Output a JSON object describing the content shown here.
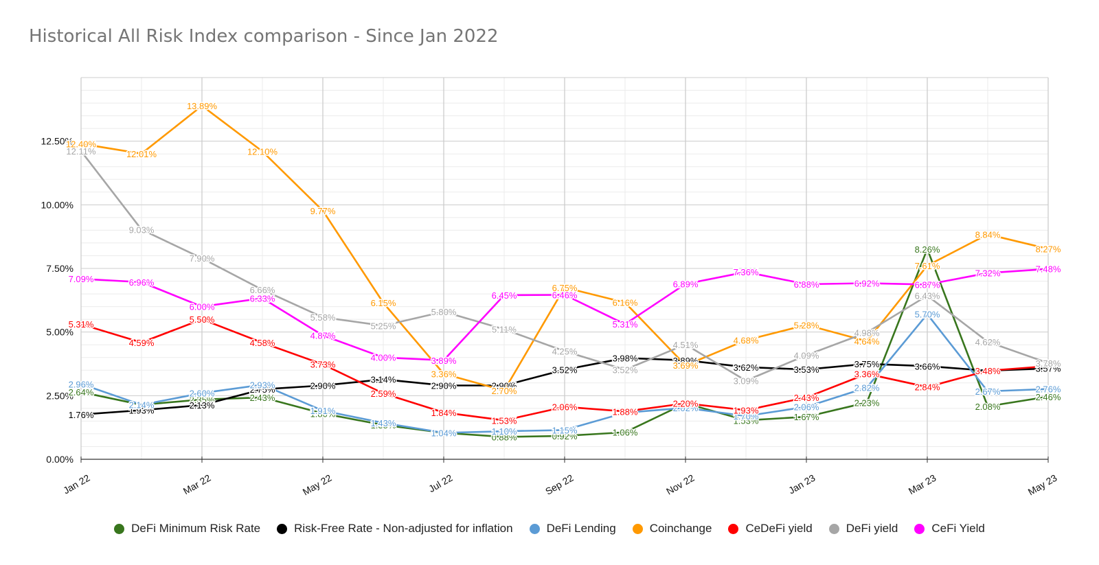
{
  "chart_data": {
    "type": "line",
    "title": "Historical All Risk Index comparison - Since Jan 2022",
    "ylim": [
      0,
      15
    ],
    "yticks": [
      {
        "value": 0,
        "label": "0.00%"
      },
      {
        "value": 2.5,
        "label": "2.50%"
      },
      {
        "value": 5,
        "label": "5.00%"
      },
      {
        "value": 7.5,
        "label": "7.50%"
      },
      {
        "value": 10,
        "label": "10.00%"
      },
      {
        "value": 12.5,
        "label": "12.50%"
      }
    ],
    "x_index_max": 16,
    "xticks": [
      {
        "index": 0,
        "label": "Jan 22"
      },
      {
        "index": 2,
        "label": "Mar 22"
      },
      {
        "index": 4,
        "label": "May 22"
      },
      {
        "index": 6,
        "label": "Jul 22"
      },
      {
        "index": 8,
        "label": "Sep 22"
      },
      {
        "index": 10,
        "label": "Nov 22"
      },
      {
        "index": 12,
        "label": "Jan 23"
      },
      {
        "index": 14,
        "label": "Mar 23"
      },
      {
        "index": 16,
        "label": "May 23"
      }
    ],
    "series": [
      {
        "name": "DeFi Minimum Risk Rate",
        "color": "#38761d",
        "values": [
          2.64,
          2.14,
          2.35,
          2.43,
          1.8,
          1.35,
          1.04,
          0.88,
          0.92,
          1.06,
          2.2,
          1.53,
          1.67,
          2.23,
          8.26,
          2.08,
          2.46
        ],
        "labels": [
          "2.64%",
          "2.14%",
          "2.35%",
          "2.43%",
          "1.80%",
          "1.35%",
          "1.04%",
          "0.88%",
          "0.92%",
          "1.06%",
          "2.20%",
          "1.53%",
          "1.67%",
          "2.23%",
          "8.26%",
          "2.08%",
          "2.46%"
        ]
      },
      {
        "name": "Risk-Free Rate - Non-adjusted for inflation",
        "color": "#000000",
        "values": [
          1.76,
          1.93,
          2.13,
          2.75,
          2.9,
          3.14,
          2.9,
          2.9,
          3.52,
          3.98,
          3.89,
          3.62,
          3.53,
          3.75,
          3.66,
          3.48,
          3.57
        ],
        "labels": [
          "1.76%",
          "1.93%",
          "2.13%",
          "2.75%",
          "2.90%",
          "3.14%",
          "2.90%",
          "2.90%",
          "3.52%",
          "3.98%",
          "3.89%",
          "3.62%",
          "3.53%",
          "3.75%",
          "3.66%",
          "",
          "3.57%"
        ]
      },
      {
        "name": "DeFi Lending",
        "color": "#5b9bd5",
        "values": [
          2.96,
          2.14,
          2.6,
          2.93,
          1.91,
          1.43,
          1.04,
          1.1,
          1.15,
          1.83,
          2.02,
          1.7,
          2.06,
          2.82,
          5.7,
          2.67,
          2.76
        ],
        "labels": [
          "2.96%",
          "2.14%",
          "2.60%",
          "2.93%",
          "1.91%",
          "1.43%",
          "1.04%",
          "1.10%",
          "1.15%",
          "1.83%",
          "2.02%",
          "1.70%",
          "2.06%",
          "2.82%",
          "5.70%",
          "2.67%",
          "2.76%"
        ]
      },
      {
        "name": "Coinchange",
        "color": "#ff9900",
        "values": [
          12.4,
          12.01,
          13.89,
          12.1,
          9.77,
          6.15,
          3.36,
          2.7,
          6.75,
          6.16,
          3.69,
          4.68,
          5.28,
          4.64,
          7.61,
          8.84,
          8.27
        ],
        "labels": [
          "12.40%",
          "12.01%",
          "13.89%",
          "12.10%",
          "9.77%",
          "6.15%",
          "3.36%",
          "2.70%",
          "6.75%",
          "6.16%",
          "3.69%",
          "4.68%",
          "5.28%",
          "4.64%",
          "7.61%",
          "8.84%",
          "8.27%"
        ]
      },
      {
        "name": "CeDeFi yield",
        "color": "#ff0000",
        "values": [
          5.31,
          4.59,
          5.5,
          4.58,
          3.73,
          2.59,
          1.84,
          1.53,
          2.06,
          1.88,
          2.2,
          1.93,
          2.43,
          3.36,
          2.84,
          3.48,
          3.66
        ],
        "labels": [
          "5.31%",
          "4.59%",
          "5.50%",
          "4.58%",
          "3.73%",
          "2.59%",
          "1.84%",
          "1.53%",
          "2.06%",
          "1.88%",
          "2.20%",
          "1.93%",
          "2.43%",
          "3.36%",
          "2.84%",
          "3.48%",
          ""
        ]
      },
      {
        "name": "DeFi yield",
        "color": "#a6a6a6",
        "values": [
          12.11,
          9.03,
          7.9,
          6.66,
          5.58,
          5.25,
          5.8,
          5.11,
          4.25,
          3.52,
          4.51,
          3.09,
          4.09,
          4.98,
          6.43,
          4.62,
          3.78
        ],
        "labels": [
          "12.11%",
          "9.03%",
          "7.90%",
          "6.66%",
          "5.58%",
          "5.25%",
          "5.80%",
          "5.11%",
          "4.25%",
          "3.52%",
          "4.51%",
          "3.09%",
          "4.09%",
          "4.98%",
          "6.43%",
          "4.62%",
          "3.78%"
        ]
      },
      {
        "name": "CeFi Yield",
        "color": "#ff00ff",
        "values": [
          7.09,
          6.96,
          6.0,
          6.33,
          4.87,
          4.0,
          3.89,
          6.45,
          6.46,
          5.31,
          6.89,
          7.36,
          6.88,
          6.92,
          6.87,
          7.32,
          7.48
        ],
        "labels": [
          "7.09%",
          "6.96%",
          "6.00%",
          "6.33%",
          "4.87%",
          "4.00%",
          "3.89%",
          "6.45%",
          "6.46%",
          "5.31%",
          "6.89%",
          "7.36%",
          "6.88%",
          "6.92%",
          "6.87%",
          "7.32%",
          "7.48%"
        ]
      }
    ]
  }
}
